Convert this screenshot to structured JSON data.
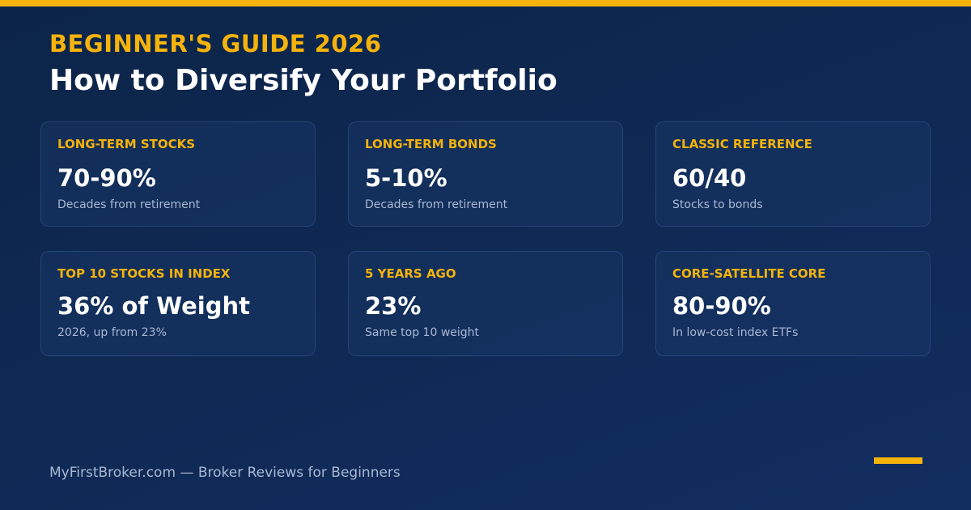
{
  "header": {
    "eyebrow": "BEGINNER'S GUIDE 2026",
    "title": "How to Diversify Your Portfolio"
  },
  "cards": [
    {
      "label": "LONG-TERM STOCKS",
      "value": "70-90%",
      "note": "Decades from retirement"
    },
    {
      "label": "LONG-TERM BONDS",
      "value": "5-10%",
      "note": "Decades from retirement"
    },
    {
      "label": "CLASSIC REFERENCE",
      "value": "60/40",
      "note": "Stocks to bonds"
    },
    {
      "label": "TOP 10 STOCKS IN INDEX",
      "value": "36% of Weight",
      "note": "2026, up from 23%"
    },
    {
      "label": "5 YEARS AGO",
      "value": "23%",
      "note": "Same top 10 weight"
    },
    {
      "label": "CORE-SATELLITE CORE",
      "value": "80-90%",
      "note": "In low-cost index ETFs"
    }
  ],
  "footer": {
    "text": "MyFirstBroker.com — Broker Reviews for Beginners"
  },
  "colors": {
    "accent": "#f5b30b",
    "background": "#0f2a55",
    "text": "#ffffff",
    "muted": "#a9b8d2"
  }
}
